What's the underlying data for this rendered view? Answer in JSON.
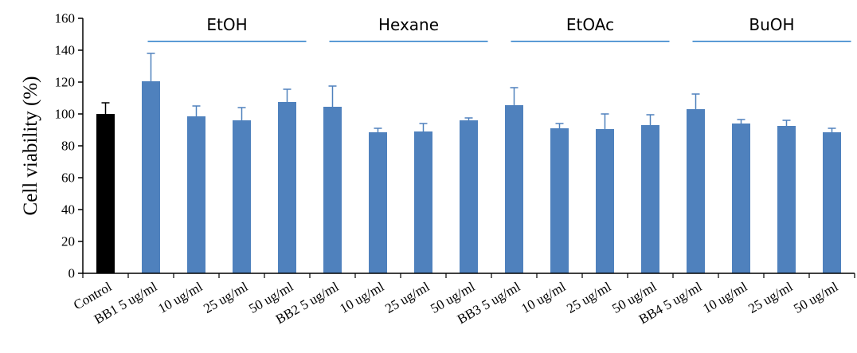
{
  "chart_data": {
    "type": "bar",
    "title": "",
    "xlabel": "",
    "ylabel": "Cell viability (%)",
    "ylim": [
      0,
      160
    ],
    "yticks": [
      0,
      20,
      40,
      60,
      80,
      100,
      120,
      140,
      160
    ],
    "grid": false,
    "categories": [
      "Control",
      "BB1 5 ug/ml",
      "10 ug/ml",
      "25 ug/ml",
      "50 ug/ml",
      "BB2 5 ug/ml",
      "10 ug/ml",
      "25 ug/ml",
      "50 ug/ml",
      "BB3 5 ug/ml",
      "10 ug/ml",
      "25 ug/ml",
      "50 ug/ml",
      "BB4 5 ug/ml",
      "10 ug/ml",
      "25 ug/ml",
      "50 ug/ml"
    ],
    "values": [
      100,
      120.5,
      98.5,
      96,
      107.5,
      104.5,
      88.5,
      89,
      96,
      105.5,
      91,
      90.5,
      93,
      103,
      94,
      92.5,
      88.5
    ],
    "errors": [
      7,
      17.5,
      6.5,
      8,
      8,
      13,
      2.5,
      5,
      1.5,
      11,
      3,
      9.5,
      6.5,
      9.5,
      2.5,
      3.5,
      2.5
    ],
    "bar_colors": [
      "#000000",
      "#4f81bd",
      "#4f81bd",
      "#4f81bd",
      "#4f81bd",
      "#4f81bd",
      "#4f81bd",
      "#4f81bd",
      "#4f81bd",
      "#4f81bd",
      "#4f81bd",
      "#4f81bd",
      "#4f81bd",
      "#4f81bd",
      "#4f81bd",
      "#4f81bd",
      "#4f81bd"
    ],
    "group_line_color": "#5b9bd5",
    "groups": [
      {
        "label": "EtOH",
        "from": 1,
        "to": 4
      },
      {
        "label": "Hexane",
        "from": 5,
        "to": 8
      },
      {
        "label": "EtOAc",
        "from": 9,
        "to": 12
      },
      {
        "label": "BuOH",
        "from": 13,
        "to": 16
      }
    ]
  }
}
